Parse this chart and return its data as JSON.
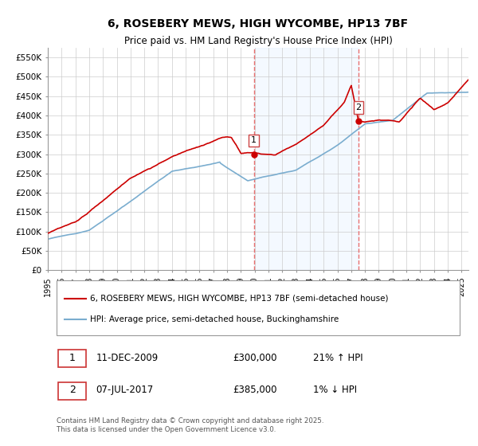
{
  "title_line1": "6, ROSEBERY MEWS, HIGH WYCOMBE, HP13 7BF",
  "title_line2": "Price paid vs. HM Land Registry's House Price Index (HPI)",
  "ylabel_ticks": [
    "£0",
    "£50K",
    "£100K",
    "£150K",
    "£200K",
    "£250K",
    "£300K",
    "£350K",
    "£400K",
    "£450K",
    "£500K",
    "£550K"
  ],
  "ytick_values": [
    0,
    50000,
    100000,
    150000,
    200000,
    250000,
    300000,
    350000,
    400000,
    450000,
    500000,
    550000
  ],
  "ylim": [
    0,
    575000
  ],
  "xlim_start": 1995.0,
  "xlim_end": 2025.5,
  "red_color": "#cc0000",
  "blue_color": "#7aadcf",
  "vline_color": "#e87070",
  "shade_color": "#ddeeff",
  "marker1_x": 2009.94,
  "marker1_y": 300000,
  "marker1_label": "1",
  "marker2_x": 2017.52,
  "marker2_y": 385000,
  "marker2_label": "2",
  "legend_line1": "6, ROSEBERY MEWS, HIGH WYCOMBE, HP13 7BF (semi-detached house)",
  "legend_line2": "HPI: Average price, semi-detached house, Buckinghamshire",
  "table_row1": [
    "1",
    "11-DEC-2009",
    "£300,000",
    "21% ↑ HPI"
  ],
  "table_row2": [
    "2",
    "07-JUL-2017",
    "£385,000",
    "1% ↓ HPI"
  ],
  "footer": "Contains HM Land Registry data © Crown copyright and database right 2025.\nThis data is licensed under the Open Government Licence v3.0.",
  "background_color": "#ffffff",
  "grid_color": "#cccccc"
}
